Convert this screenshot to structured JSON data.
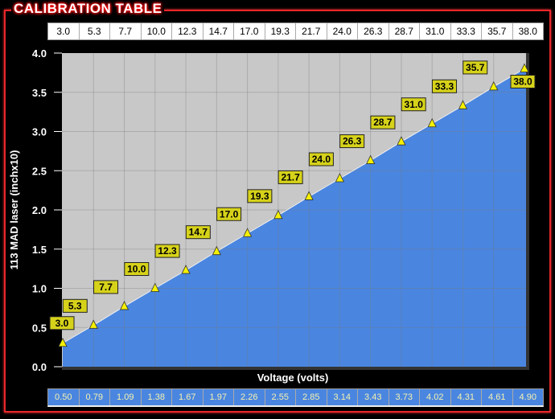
{
  "title": "CALIBRATION TABLE",
  "colors": {
    "frame": "#e8262a",
    "plot_bg": "#c8c8c8",
    "fill": "#4a86e0",
    "marker": "#f5f000",
    "label_bg": "#d6d21a"
  },
  "chart_data": {
    "type": "area",
    "xlabel": "Voltage (volts)",
    "ylabel": "113 MAD laser (inchx10)",
    "ylim": [
      0,
      4.0
    ],
    "yticks": [
      "0.0",
      "0.5",
      "1.0",
      "1.5",
      "2.0",
      "2.5",
      "3.0",
      "3.5",
      "4.0"
    ],
    "grid": true,
    "x": [
      "0.50",
      "0.79",
      "1.09",
      "1.38",
      "1.67",
      "1.97",
      "2.26",
      "2.55",
      "2.85",
      "3.14",
      "3.43",
      "3.73",
      "4.02",
      "4.31",
      "4.61",
      "4.90"
    ],
    "point_labels": [
      "3.0",
      "5.3",
      "7.7",
      "10.0",
      "12.3",
      "14.7",
      "17.0",
      "19.3",
      "21.7",
      "24.0",
      "26.3",
      "28.7",
      "31.0",
      "33.3",
      "35.7",
      "38.0"
    ],
    "y": [
      0.3,
      0.53,
      0.77,
      1.0,
      1.23,
      1.47,
      1.7,
      1.93,
      2.17,
      2.4,
      2.63,
      2.87,
      3.1,
      3.33,
      3.57,
      3.8
    ]
  }
}
